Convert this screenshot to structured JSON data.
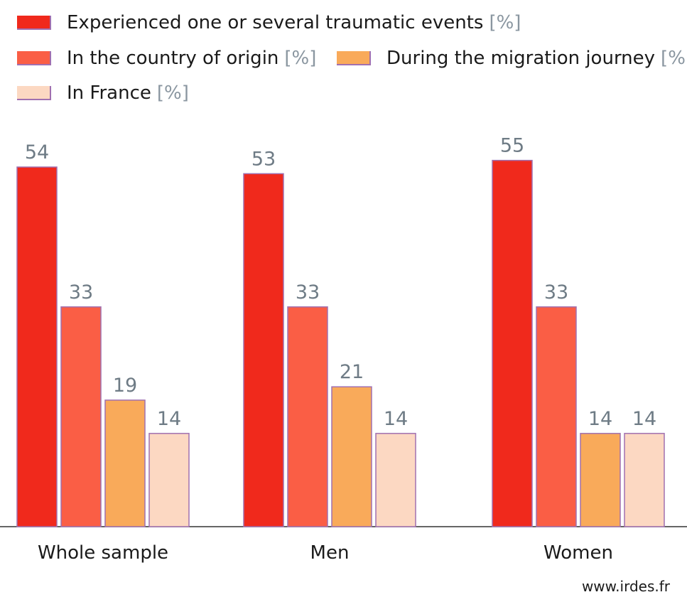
{
  "chart_data": {
    "type": "bar",
    "categories": [
      "Whole sample",
      "Men",
      "Women"
    ],
    "series": [
      {
        "name": "Experienced one or several traumatic events",
        "unit": "[%]",
        "color": "#f0291c",
        "values": [
          54,
          53,
          55
        ]
      },
      {
        "name": "In the country of origin",
        "unit": "[%]",
        "color": "#fa5e45",
        "values": [
          33,
          33,
          33
        ]
      },
      {
        "name": "During the migration journey",
        "unit": "[%]",
        "color": "#f9aa5a",
        "values": [
          19,
          21,
          14
        ]
      },
      {
        "name": "In France",
        "unit": "[%]",
        "color": "#fcd8c2",
        "values": [
          14,
          14,
          14
        ]
      }
    ],
    "ylim": [
      0,
      60
    ],
    "grid": false,
    "legend_position": "top",
    "source": "www.irdes.fr"
  }
}
